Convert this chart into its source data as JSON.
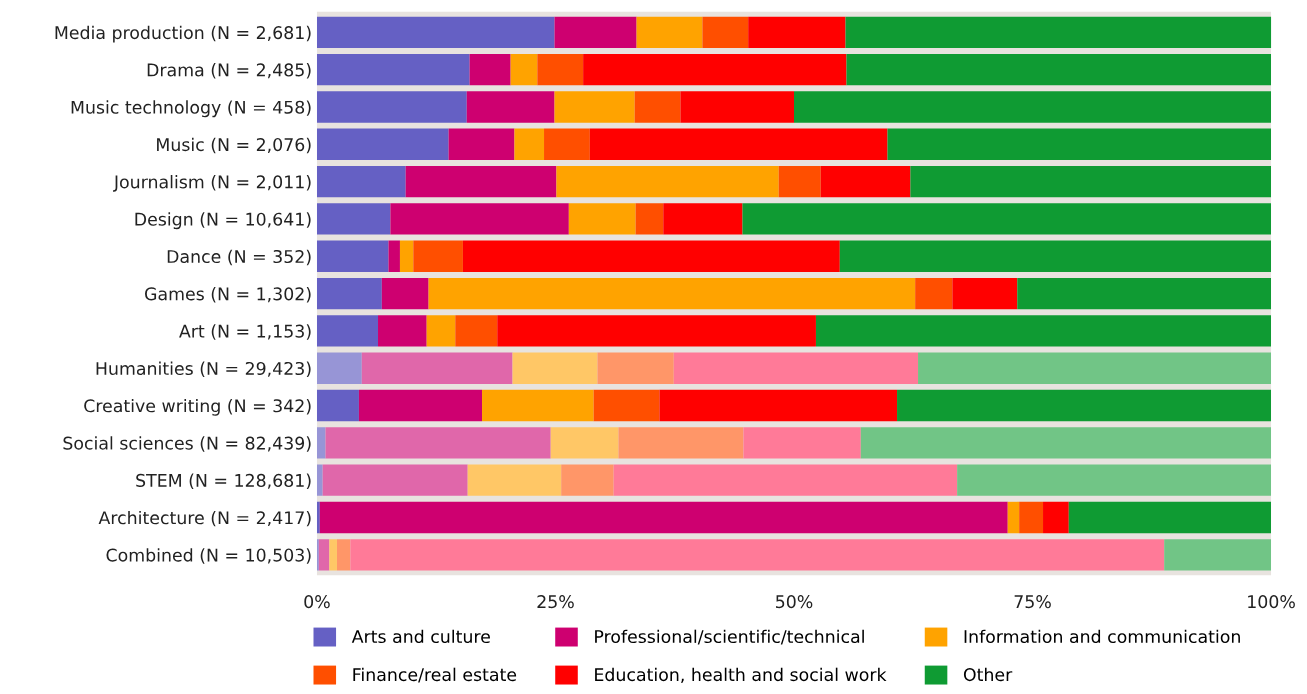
{
  "chart_data": {
    "type": "bar",
    "orientation": "horizontal",
    "stacked": true,
    "categories": [
      "Media production (N = 2,681)",
      "Drama (N = 2,485)",
      "Music technology (N = 458)",
      "Music (N = 2,076)",
      "Journalism (N = 2,011)",
      "Design (N = 10,641)",
      "Dance (N = 352)",
      "Games (N = 1,302)",
      "Art (N = 1,153)",
      "Humanities (N = 29,423)",
      "Creative writing (N = 342)",
      "Social sciences (N = 82,439)",
      "STEM (N = 128,681)",
      "Architecture (N = 2,417)",
      "Combined (N = 10,503)"
    ],
    "series": [
      {
        "name": "Arts and culture",
        "color": "#6560c4",
        "colors": [
          "#6560c4",
          "#6560c4",
          "#6560c4",
          "#6560c4",
          "#6560c4",
          "#6560c4",
          "#6560c4",
          "#6560c4",
          "#6560c4",
          "#9795d6",
          "#6560c4",
          "#9795d6",
          "#9795d6",
          "#6560c4",
          "#9795d6"
        ],
        "values": [
          24.9,
          16.0,
          15.7,
          13.8,
          9.3,
          7.7,
          7.5,
          6.8,
          6.4,
          4.7,
          4.4,
          0.9,
          0.6,
          0.3,
          0.2
        ]
      },
      {
        "name": "Professional/scientific/technical",
        "color": "#ce0070",
        "colors": [
          "#ce0070",
          "#ce0070",
          "#ce0070",
          "#ce0070",
          "#ce0070",
          "#ce0070",
          "#ce0070",
          "#ce0070",
          "#ce0070",
          "#e067aa",
          "#ce0070",
          "#e067aa",
          "#e067aa",
          "#ce0070",
          "#e067aa"
        ],
        "values": [
          8.6,
          4.3,
          9.2,
          6.9,
          15.8,
          18.7,
          1.2,
          4.9,
          5.1,
          15.8,
          12.9,
          23.6,
          15.2,
          72.1,
          1.1
        ]
      },
      {
        "name": "Information and communication",
        "color": "#ffa300",
        "colors": [
          "#ffa300",
          "#ffa300",
          "#ffa300",
          "#ffa300",
          "#ffa300",
          "#ffa300",
          "#ffa300",
          "#ffa300",
          "#ffa300",
          "#ffc766",
          "#ffa300",
          "#ffc766",
          "#ffc766",
          "#ffa300",
          "#ffc766"
        ],
        "values": [
          6.9,
          2.8,
          8.4,
          3.1,
          23.3,
          7.0,
          1.4,
          51.0,
          3.0,
          8.9,
          11.7,
          7.1,
          9.8,
          1.2,
          0.8
        ]
      },
      {
        "name": "Finance/real estate",
        "color": "#ff4f00",
        "colors": [
          "#ff4f00",
          "#ff4f00",
          "#ff4f00",
          "#ff4f00",
          "#ff4f00",
          "#ff4f00",
          "#ff4f00",
          "#ff4f00",
          "#ff4f00",
          "#ff9668",
          "#ff4f00",
          "#ff9668",
          "#ff9668",
          "#ff4f00",
          "#ff9668"
        ],
        "values": [
          4.8,
          4.8,
          4.8,
          4.8,
          4.4,
          2.9,
          5.2,
          3.9,
          4.4,
          8.0,
          6.9,
          13.1,
          5.5,
          2.5,
          1.4
        ]
      },
      {
        "name": "Education, health and social work",
        "color": "#ff0000",
        "colors": [
          "#ff0000",
          "#ff0000",
          "#ff0000",
          "#ff0000",
          "#ff0000",
          "#ff0000",
          "#ff0000",
          "#ff0000",
          "#ff0000",
          "#ff7a98",
          "#ff0000",
          "#ff7a98",
          "#ff7a98",
          "#ff0000",
          "#ff7a98"
        ],
        "values": [
          10.2,
          27.6,
          11.9,
          31.2,
          9.4,
          8.3,
          39.5,
          6.8,
          33.4,
          25.6,
          24.9,
          12.3,
          36.0,
          2.7,
          85.3
        ]
      },
      {
        "name": "Other",
        "color": "#0f9b33",
        "colors": [
          "#0f9b33",
          "#0f9b33",
          "#0f9b33",
          "#0f9b33",
          "#0f9b33",
          "#0f9b33",
          "#0f9b33",
          "#0f9b33",
          "#0f9b33",
          "#71c586",
          "#0f9b33",
          "#71c586",
          "#71c586",
          "#0f9b33",
          "#71c586"
        ],
        "values": [
          44.7,
          44.5,
          50.0,
          40.2,
          37.8,
          55.4,
          45.2,
          26.6,
          47.7,
          37.0,
          39.2,
          43.0,
          32.9,
          21.2,
          11.2
        ]
      }
    ],
    "xlim": [
      0,
      100
    ],
    "xticks": [
      {
        "value": 0,
        "label": "0%"
      },
      {
        "value": 25,
        "label": "25%"
      },
      {
        "value": 50,
        "label": "50%"
      },
      {
        "value": 75,
        "label": "75%"
      },
      {
        "value": 100,
        "label": "100%"
      }
    ],
    "grid": false,
    "legend": "bottom"
  }
}
